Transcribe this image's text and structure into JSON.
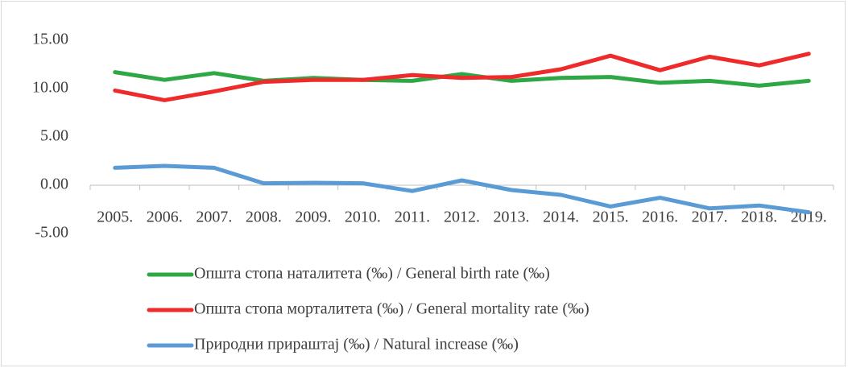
{
  "chart_data": {
    "type": "line",
    "categories": [
      "2005.",
      "2006.",
      "2007.",
      "2008.",
      "2009.",
      "2010.",
      "2011.",
      "2012.",
      "2013.",
      "2014.",
      "2015.",
      "2016.",
      "2017.",
      "2018.",
      "2019."
    ],
    "series": [
      {
        "name": "Општа стопа наталитета (‰) / General birth rate (‰)",
        "color": "#2ea745",
        "values": [
          11.7,
          10.9,
          11.6,
          10.8,
          11.1,
          10.9,
          10.8,
          11.5,
          10.8,
          11.1,
          11.2,
          10.6,
          10.8,
          10.3,
          10.8
        ]
      },
      {
        "name": "Општа стопа морталитета (‰) / General mortality rate (‰)",
        "color": "#ee2a2a",
        "values": [
          9.8,
          8.8,
          9.7,
          10.7,
          10.9,
          10.9,
          11.4,
          11.1,
          11.2,
          12.0,
          13.4,
          11.9,
          13.3,
          12.4,
          13.6
        ]
      },
      {
        "name": "Природни прираштај (‰) / Natural increase (‰)",
        "color": "#5b9bd5",
        "values": [
          1.8,
          2.0,
          1.8,
          0.2,
          0.25,
          0.2,
          -0.6,
          0.5,
          -0.5,
          -1.0,
          -2.2,
          -1.3,
          -2.4,
          -2.1,
          -2.8
        ]
      }
    ],
    "ylim": [
      -5,
      15
    ],
    "yticks": [
      {
        "value": -5,
        "label": "-5.00"
      },
      {
        "value": 0,
        "label": "0.00"
      },
      {
        "value": 5,
        "label": "5.00"
      },
      {
        "value": 10,
        "label": "10.00"
      },
      {
        "value": 15,
        "label": "15.00"
      }
    ],
    "legend": "bottom"
  }
}
